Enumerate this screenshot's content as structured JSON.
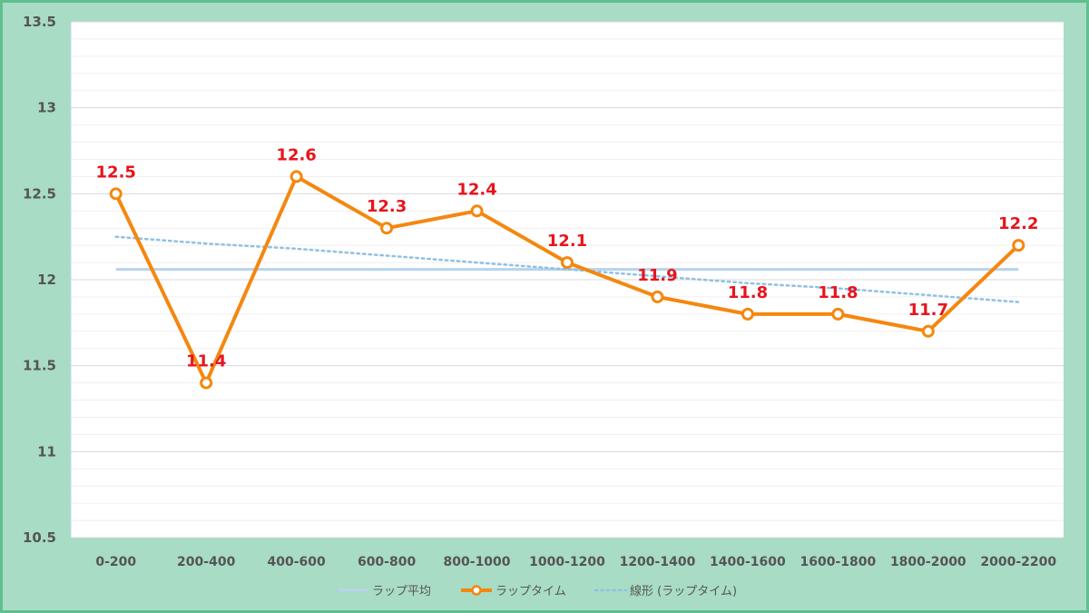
{
  "chart_data": {
    "type": "line",
    "categories": [
      "0-200",
      "200-400",
      "400-600",
      "600-800",
      "800-1000",
      "1000-1200",
      "1200-1400",
      "1400-1600",
      "1600-1800",
      "1800-2000",
      "2000-2200"
    ],
    "series": [
      {
        "name": "ラップ平均",
        "values": [
          12.06,
          12.06,
          12.06,
          12.06,
          12.06,
          12.06,
          12.06,
          12.06,
          12.06,
          12.06,
          12.06
        ],
        "color": "#b7d3ee",
        "style": "solid"
      },
      {
        "name": "ラップタイム",
        "values": [
          12.5,
          11.4,
          12.6,
          12.3,
          12.4,
          12.1,
          11.9,
          11.8,
          11.8,
          11.7,
          12.2
        ],
        "color": "#f5870f",
        "style": "solid-markers"
      },
      {
        "name": "線形 (ラップタイム)",
        "values": [
          12.25,
          12.21,
          12.18,
          12.14,
          12.1,
          12.06,
          12.02,
          11.98,
          11.95,
          11.91,
          11.87
        ],
        "color": "#8fc1e3",
        "style": "dotted"
      }
    ],
    "data_labels": [
      "12.5",
      "11.4",
      "12.6",
      "12.3",
      "12.4",
      "12.1",
      "11.9",
      "11.8",
      "11.8",
      "11.7",
      "12.2"
    ],
    "y_ticks": [
      "10.5",
      "11",
      "11.5",
      "12",
      "12.5",
      "13",
      "13.5"
    ],
    "ylim": [
      10.5,
      13.5
    ],
    "grid": true,
    "legend_position": "bottom"
  }
}
